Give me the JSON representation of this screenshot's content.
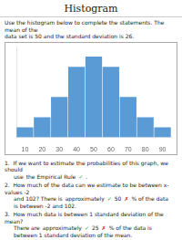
{
  "chart_data": {
    "type": "bar",
    "title": "Histogram",
    "subtitle": [
      "Use the histogram below to complete the statements. The mean of the",
      "data set is 50 and the standard deviation is 26."
    ],
    "x": [
      10,
      20,
      30,
      40,
      50,
      60,
      70,
      80,
      90
    ],
    "values": [
      1,
      2,
      4,
      7,
      8,
      7,
      4,
      2,
      1
    ],
    "color": "#5b9bd5",
    "xlim": [
      5,
      95
    ],
    "xticks": [
      10,
      20,
      30,
      40,
      50,
      60,
      70,
      80,
      90
    ],
    "ylim": [
      0,
      9
    ],
    "tick_labels": "x",
    "grid": false,
    "annotations": [
      [
        {
          "text": "1.  If we want to estimate the probabilities of this graph, we should"
        }
      ],
      [
        {
          "text": "use"
        },
        {
          "text": "the Empirical Rule"
        },
        {
          "text": "✓",
          "color": "#22aa22"
        },
        {
          "text": "."
        }
      ],
      [
        {
          "text": "2.  How much of the data can we estimate to be between x-values -2"
        }
      ],
      [
        {
          "text": "and 102? There is"
        },
        {
          "text": "approximately"
        },
        {
          "text": "✓",
          "color": "#22aa22"
        },
        {
          "text": "50"
        },
        {
          "text": "✗",
          "color": "#cc2222"
        },
        {
          "text": "% of the data"
        }
      ],
      [
        {
          "text": "is between -2 and 102."
        }
      ],
      [
        {
          "text": "3.  How much data is between 1 standard deviation of the mean?"
        }
      ],
      [
        {
          "text": "There are"
        },
        {
          "text": "approximately"
        },
        {
          "text": "✓",
          "color": "#22aa22"
        },
        {
          "text": "25"
        },
        {
          "text": "✗",
          "color": "#cc2222"
        },
        {
          "text": "% of the data is"
        }
      ],
      [
        {
          "text": "between 1 standard deviation of the mean."
        }
      ]
    ]
  }
}
